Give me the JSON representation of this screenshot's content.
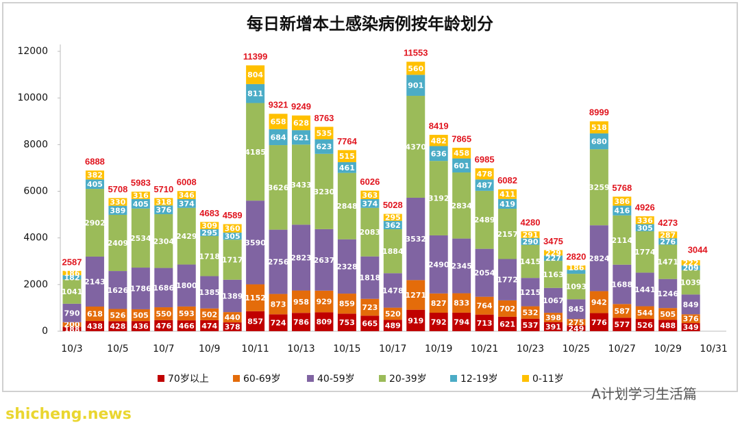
{
  "chart_data": {
    "type": "stacked_bar",
    "title": "每日新增本土感染病例按年龄划分",
    "categories": [
      "10/3",
      null,
      "10/5",
      null,
      "10/7",
      null,
      "10/9",
      null,
      "10/11",
      null,
      "10/13",
      null,
      "10/15",
      null,
      "10/17",
      null,
      "10/19",
      null,
      "10/21",
      null,
      "10/23",
      null,
      "10/25",
      null,
      "10/27",
      null,
      "10/29",
      null,
      "10/31"
    ],
    "ylim": [
      0,
      12000
    ],
    "yticks": [
      0,
      2000,
      4000,
      6000,
      8000,
      10000,
      12000
    ],
    "series": [
      {
        "name": "70岁以上",
        "color": "#c00000",
        "values": [
          188,
          438,
          428,
          436,
          476,
          466,
          474,
          378,
          857,
          724,
          786,
          809,
          753,
          665,
          489,
          919,
          792,
          794,
          713,
          621,
          537,
          391,
          249,
          776,
          577,
          526,
          488,
          349,
          null
        ]
      },
      {
        "name": "60-69岁",
        "color": "#e46c0a",
        "values": [
          200,
          618,
          526,
          505,
          550,
          593,
          502,
          440,
          1152,
          873,
          958,
          929,
          859,
          723,
          520,
          1271,
          827,
          833,
          764,
          702,
          532,
          398,
          275,
          942,
          587,
          544,
          505,
          376,
          null
        ]
      },
      {
        "name": "40-59岁",
        "color": "#8064a2",
        "values": [
          790,
          2143,
          1626,
          1786,
          1686,
          1800,
          1385,
          1389,
          3590,
          2756,
          2823,
          2637,
          2328,
          1818,
          1478,
          3532,
          2490,
          2345,
          2054,
          1772,
          1215,
          1067,
          845,
          2824,
          1688,
          1441,
          1246,
          849,
          null
        ]
      },
      {
        "name": "20-39岁",
        "color": "#9bbb59",
        "values": [
          1041,
          2902,
          2409,
          2534,
          2304,
          2429,
          1718,
          1717,
          4185,
          3626,
          3433,
          3230,
          2848,
          2083,
          1884,
          4370,
          3192,
          2834,
          2489,
          2157,
          1415,
          1163,
          1093,
          3259,
          2114,
          1774,
          1471,
          1039,
          null
        ]
      },
      {
        "name": "12-19岁",
        "color": "#4bacc6",
        "values": [
          182,
          405,
          389,
          405,
          376,
          374,
          295,
          305,
          811,
          684,
          621,
          623,
          461,
          374,
          362,
          901,
          636,
          601,
          487,
          419,
          290,
          227,
          172,
          680,
          416,
          305,
          276,
          209,
          null
        ]
      },
      {
        "name": "0-11岁",
        "color": "#ffc000",
        "values": [
          186,
          382,
          330,
          316,
          318,
          346,
          309,
          360,
          804,
          658,
          628,
          535,
          515,
          363,
          295,
          560,
          482,
          458,
          478,
          411,
          291,
          229,
          186,
          518,
          386,
          336,
          287,
          222,
          null
        ]
      }
    ],
    "totals": [
      2587,
      6888,
      5708,
      5983,
      5710,
      6008,
      4683,
      4589,
      11399,
      9321,
      9249,
      8763,
      7764,
      6026,
      5028,
      11553,
      8419,
      7865,
      6985,
      6082,
      4280,
      3475,
      2820,
      8999,
      5768,
      4926,
      4273,
      3044,
      null
    ],
    "watermarks": [
      "A计划学习生活篇",
      "shicheng.news"
    ]
  }
}
